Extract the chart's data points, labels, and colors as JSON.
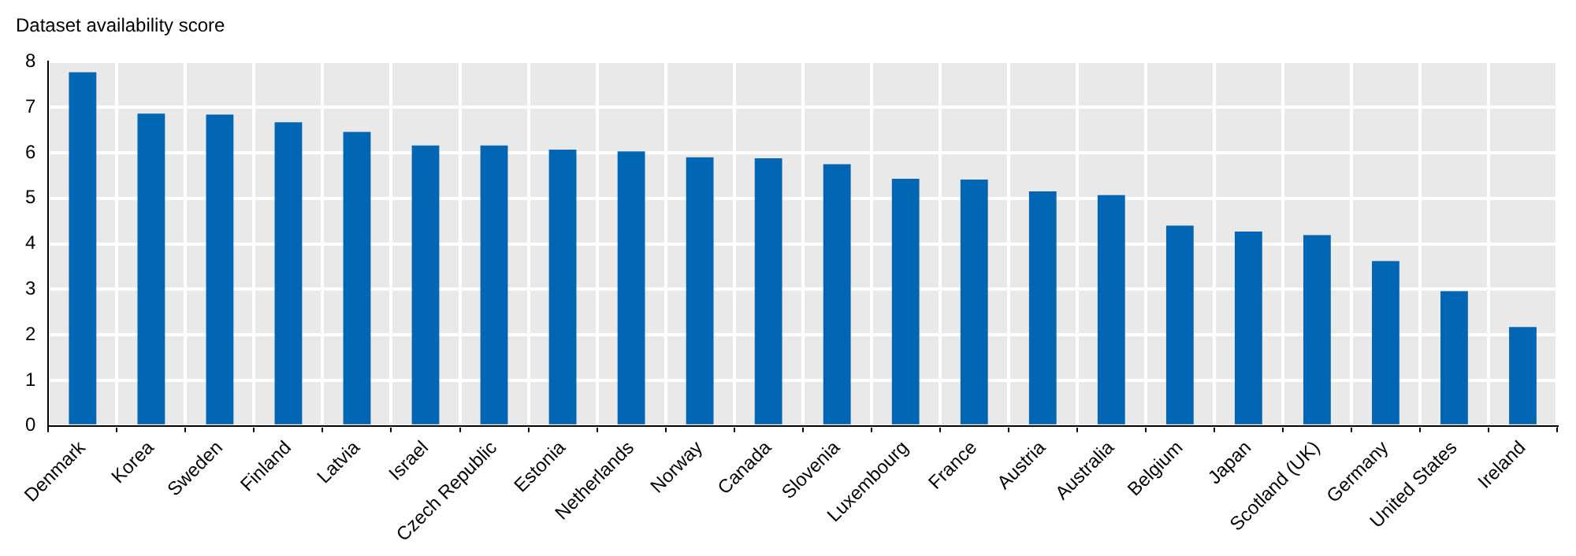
{
  "chart_data": {
    "type": "bar",
    "ylabel": "Dataset availability score",
    "categories": [
      "Denmark",
      "Korea",
      "Sweden",
      "Finland",
      "Latvia",
      "Israel",
      "Czech Republic",
      "Estonia",
      "Netherlands",
      "Norway",
      "Canada",
      "Slovenia",
      "Luxembourg",
      "France",
      "Austria",
      "Australia",
      "Belgium",
      "Japan",
      "Scotland (UK)",
      "Germany",
      "United States",
      "Ireland"
    ],
    "values": [
      7.77,
      6.86,
      6.84,
      6.67,
      6.46,
      6.16,
      6.16,
      6.07,
      6.03,
      5.9,
      5.88,
      5.75,
      5.43,
      5.41,
      5.15,
      5.07,
      4.4,
      4.27,
      4.19,
      3.62,
      2.96,
      2.17
    ],
    "color": "#0066b3",
    "ylim": [
      0,
      8
    ],
    "yticks": [
      0,
      1,
      2,
      3,
      4,
      5,
      6,
      7,
      8
    ],
    "grid": true,
    "legend": false
  }
}
